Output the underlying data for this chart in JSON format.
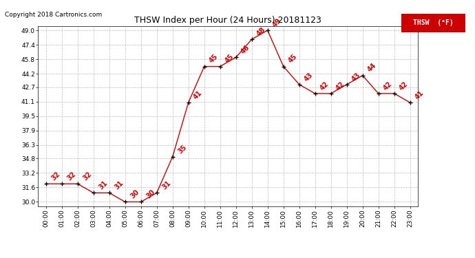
{
  "title": "THSW Index per Hour (24 Hours) 20181123",
  "copyright": "Copyright 2018 Cartronics.com",
  "legend_label": "THSW  (°F)",
  "hours": [
    0,
    1,
    2,
    3,
    4,
    5,
    6,
    7,
    8,
    9,
    10,
    11,
    12,
    13,
    14,
    15,
    16,
    17,
    18,
    19,
    20,
    21,
    22,
    23
  ],
  "values": [
    32,
    32,
    32,
    31,
    31,
    30,
    30,
    31,
    35,
    41,
    45,
    45,
    46,
    48,
    49,
    45,
    43,
    42,
    42,
    43,
    44,
    42,
    42,
    41
  ],
  "xlabels": [
    "00:00",
    "01:00",
    "02:00",
    "03:00",
    "04:00",
    "05:00",
    "06:00",
    "07:00",
    "08:00",
    "09:00",
    "10:00",
    "11:00",
    "12:00",
    "13:00",
    "14:00",
    "15:00",
    "16:00",
    "17:00",
    "18:00",
    "19:00",
    "20:00",
    "21:00",
    "22:00",
    "23:00"
  ],
  "yticks": [
    30.0,
    31.6,
    33.2,
    34.8,
    36.3,
    37.9,
    39.5,
    41.1,
    42.7,
    44.2,
    45.8,
    47.4,
    49.0
  ],
  "ylim": [
    29.5,
    49.5
  ],
  "line_color": "#cc0000",
  "marker_color": "#000000",
  "label_color": "#cc0000",
  "bg_color": "#ffffff",
  "grid_color": "#bbbbbb",
  "title_fontsize": 9,
  "copyright_fontsize": 6.5,
  "tick_fontsize": 6.5,
  "label_fontsize": 7,
  "legend_fontsize": 7
}
